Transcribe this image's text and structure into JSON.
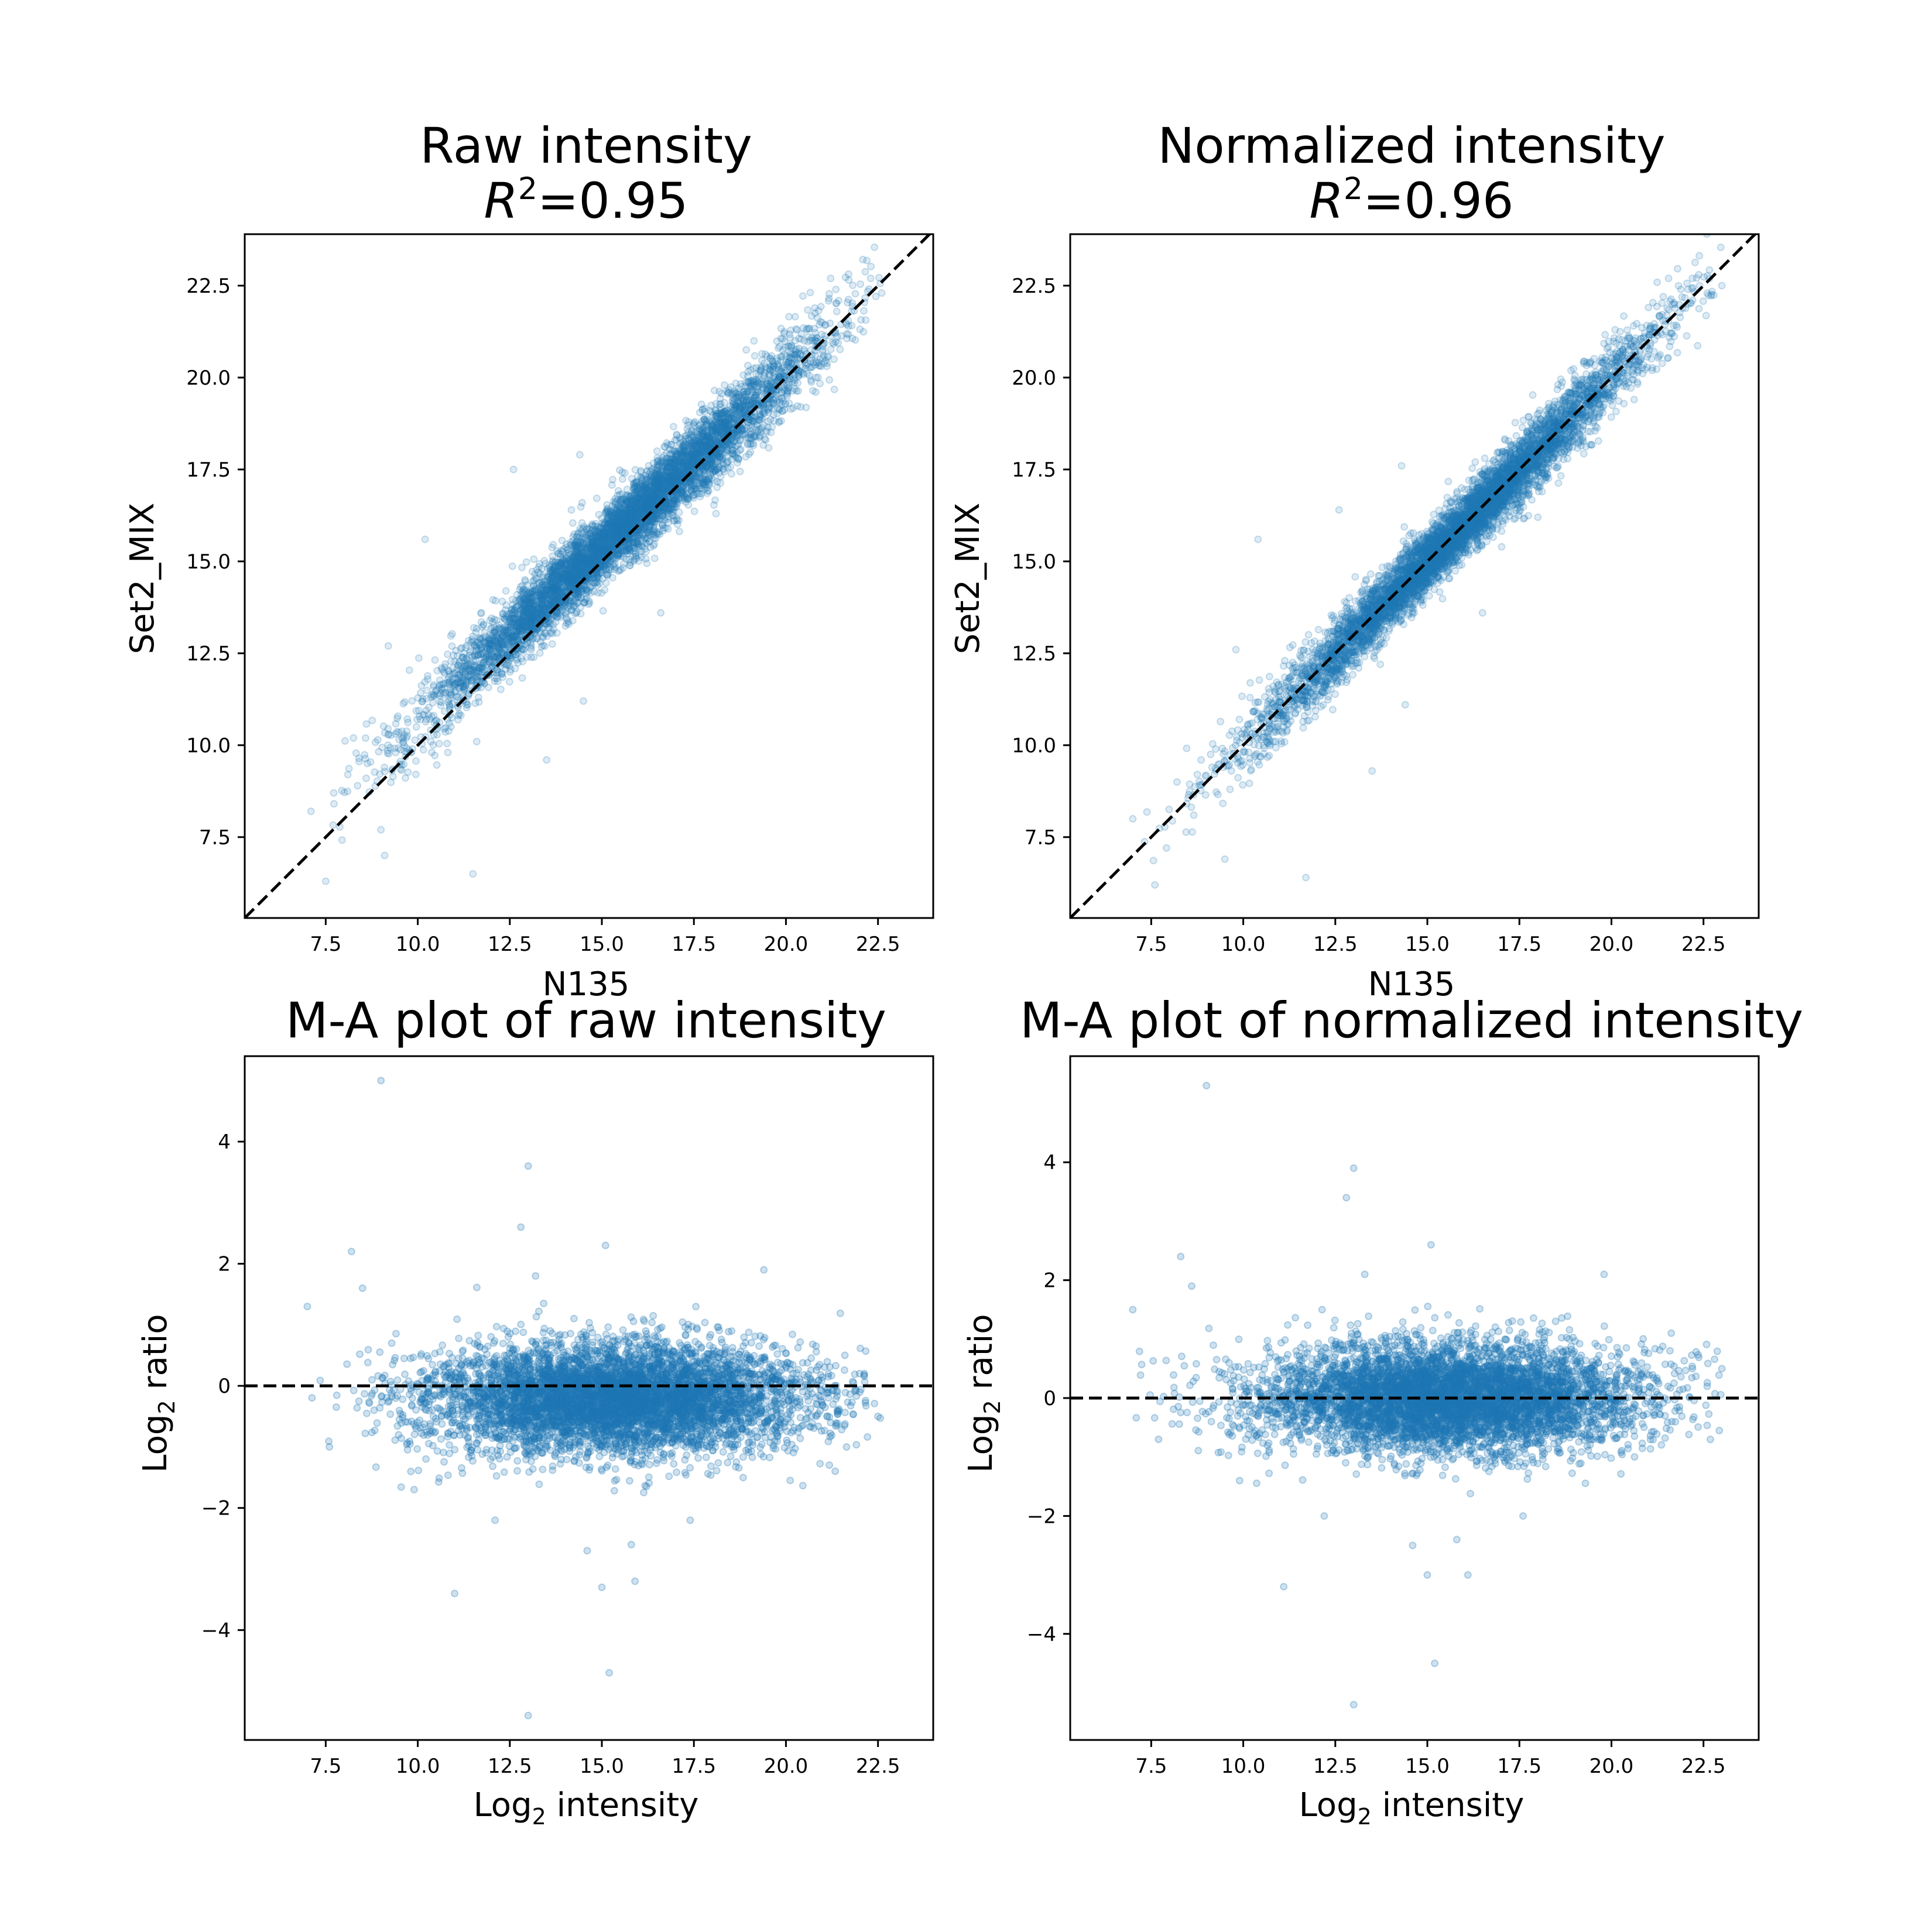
{
  "colors": {
    "points": "#1f77b4",
    "reference_line": "#000000",
    "frame": "#000000",
    "background": "#ffffff"
  },
  "chart_data": [
    {
      "id": "raw",
      "type": "scatter",
      "title": "Raw intensity",
      "subtitle_var": "R",
      "subtitle_sup": "2",
      "subtitle_value": "=0.95",
      "xlabel": "N135",
      "ylabel": "Set2_MIX",
      "xlim": [
        5.3,
        24.0
      ],
      "ylim": [
        5.3,
        23.9
      ],
      "xticks": [
        7.5,
        10.0,
        12.5,
        15.0,
        17.5,
        20.0,
        22.5
      ],
      "yticks": [
        7.5,
        10.0,
        12.5,
        15.0,
        17.5,
        20.0,
        22.5
      ],
      "reference_line": "y = x (dashed)",
      "point_alpha": 0.15,
      "trend": {
        "slope": 0.94,
        "intercept": 1.27,
        "noise_sd": 0.45
      },
      "x_range_of_points": [
        7.5,
        22.6
      ],
      "n_points_approx": 6000,
      "series": [
        {
          "points": [
            [
              7.5,
              6.3
            ],
            [
              7.1,
              8.2
            ],
            [
              8.1,
              9.2
            ],
            [
              8.6,
              9.1
            ],
            [
              9.1,
              7.0
            ],
            [
              9.0,
              7.7
            ],
            [
              9.2,
              12.7
            ],
            [
              9.4,
              9.8
            ],
            [
              10.2,
              15.6
            ],
            [
              11.5,
              6.5
            ],
            [
              11.6,
              10.1
            ],
            [
              12.6,
              17.5
            ],
            [
              13.5,
              9.6
            ],
            [
              14.4,
              17.9
            ],
            [
              14.5,
              11.2
            ],
            [
              16.5,
              18.0
            ],
            [
              16.6,
              13.6
            ],
            [
              18.1,
              16.3
            ],
            [
              20.4,
              19.2
            ],
            [
              20.5,
              21.0
            ],
            [
              22.3,
              22.7
            ],
            [
              22.6,
              22.3
            ],
            [
              21.7,
              21.4
            ],
            [
              19.1,
              19.9
            ],
            [
              17.9,
              18.1
            ],
            [
              16.0,
              16.6
            ],
            [
              13.0,
              13.4
            ],
            [
              11.0,
              11.6
            ]
          ]
        }
      ]
    },
    {
      "id": "normalized",
      "type": "scatter",
      "title": "Normalized intensity",
      "subtitle_var": "R",
      "subtitle_sup": "2",
      "subtitle_value": "=0.96",
      "xlabel": "N135",
      "ylabel": "Set2_MIX",
      "xlim": [
        5.3,
        24.0
      ],
      "ylim": [
        5.3,
        23.9
      ],
      "xticks": [
        7.5,
        10.0,
        12.5,
        15.0,
        17.5,
        20.0,
        22.5
      ],
      "yticks": [
        7.5,
        10.0,
        12.5,
        15.0,
        17.5,
        20.0,
        22.5
      ],
      "reference_line": "y = x (dashed)",
      "point_alpha": 0.15,
      "trend": {
        "slope": 1.0,
        "intercept": 0.0,
        "noise_sd": 0.4
      },
      "x_range_of_points": [
        7.2,
        23.0
      ],
      "n_points_approx": 6000,
      "series": [
        {
          "points": [
            [
              7.6,
              6.2
            ],
            [
              7.0,
              8.0
            ],
            [
              8.2,
              9.0
            ],
            [
              9.5,
              6.9
            ],
            [
              10.4,
              15.6
            ],
            [
              9.8,
              12.6
            ],
            [
              11.7,
              6.4
            ],
            [
              12.6,
              16.4
            ],
            [
              13.5,
              9.3
            ],
            [
              14.3,
              17.6
            ],
            [
              14.4,
              11.1
            ],
            [
              16.3,
              17.7
            ],
            [
              16.5,
              13.6
            ],
            [
              18.0,
              16.2
            ],
            [
              19.9,
              19.6
            ],
            [
              20.1,
              21.3
            ],
            [
              22.2,
              22.7
            ],
            [
              23.0,
              22.5
            ],
            [
              21.5,
              21.7
            ],
            [
              19.0,
              19.1
            ],
            [
              17.2,
              17.4
            ],
            [
              15.5,
              15.4
            ]
          ]
        }
      ]
    },
    {
      "id": "ma_raw",
      "type": "scatter",
      "title": "M-A plot of raw intensity",
      "xlabel_main": "Log",
      "xlabel_sub": "2",
      "xlabel_rest": " intensity",
      "ylabel_main": "Log",
      "ylabel_sub": "2",
      "ylabel_rest": " ratio",
      "xlim": [
        5.3,
        24.0
      ],
      "ylim": [
        -5.8,
        5.4
      ],
      "xticks": [
        7.5,
        10.0,
        12.5,
        15.0,
        17.5,
        20.0,
        22.5
      ],
      "xtick_labels": [
        "7.5",
        "10.0",
        "12.5",
        "15.0",
        "17.5",
        "20.0",
        "22.5"
      ],
      "yticks": [
        -4,
        -2,
        0,
        2,
        4
      ],
      "ytick_labels": [
        "−4",
        "−2",
        "0",
        "2",
        "4"
      ],
      "reference_line": "y = 0 (dashed)",
      "point_alpha": 0.22,
      "trend": {
        "mean_ratio": -0.2,
        "noise_sd": 0.45
      },
      "x_range_of_points": [
        7.0,
        22.6
      ],
      "n_points_approx": 6000,
      "series": [
        {
          "points": [
            [
              9.0,
              5.0
            ],
            [
              13.0,
              3.6
            ],
            [
              12.8,
              2.6
            ],
            [
              8.2,
              2.2
            ],
            [
              15.1,
              2.3
            ],
            [
              13.2,
              1.8
            ],
            [
              19.4,
              1.9
            ],
            [
              7.0,
              1.3
            ],
            [
              8.5,
              1.6
            ],
            [
              7.6,
              -1.0
            ],
            [
              11.0,
              -3.4
            ],
            [
              13.0,
              -5.4
            ],
            [
              15.2,
              -4.7
            ],
            [
              15.0,
              -3.3
            ],
            [
              15.9,
              -3.2
            ],
            [
              14.6,
              -2.7
            ],
            [
              15.8,
              -2.6
            ],
            [
              12.1,
              -2.2
            ],
            [
              17.4,
              -2.2
            ],
            [
              22.5,
              -0.5
            ],
            [
              21.6,
              0.5
            ],
            [
              22.0,
              0.2
            ],
            [
              9.9,
              -1.7
            ]
          ]
        }
      ]
    },
    {
      "id": "ma_normalized",
      "type": "scatter",
      "title": "M-A plot of normalized intensity",
      "xlabel_main": "Log",
      "xlabel_sub": "2",
      "xlabel_rest": " intensity",
      "ylabel_main": "Log",
      "ylabel_sub": "2",
      "ylabel_rest": " ratio",
      "xlim": [
        5.3,
        24.0
      ],
      "ylim": [
        -5.8,
        5.8
      ],
      "xticks": [
        7.5,
        10.0,
        12.5,
        15.0,
        17.5,
        20.0,
        22.5
      ],
      "xtick_labels": [
        "7.5",
        "10.0",
        "12.5",
        "15.0",
        "17.5",
        "20.0",
        "22.5"
      ],
      "yticks": [
        -4,
        -2,
        0,
        2,
        4
      ],
      "ytick_labels": [
        "−4",
        "−2",
        "0",
        "2",
        "4"
      ],
      "reference_line": "y = 0 (dashed)",
      "point_alpha": 0.22,
      "trend": {
        "mean_ratio": 0.0,
        "noise_sd": 0.45
      },
      "x_range_of_points": [
        7.0,
        23.0
      ],
      "n_points_approx": 6000,
      "series": [
        {
          "points": [
            [
              9.0,
              5.3
            ],
            [
              13.0,
              3.9
            ],
            [
              12.8,
              3.4
            ],
            [
              8.3,
              2.4
            ],
            [
              15.1,
              2.6
            ],
            [
              13.3,
              2.1
            ],
            [
              19.8,
              2.1
            ],
            [
              7.0,
              1.5
            ],
            [
              8.6,
              1.9
            ],
            [
              7.7,
              -0.7
            ],
            [
              11.1,
              -3.2
            ],
            [
              13.0,
              -5.2
            ],
            [
              15.2,
              -4.5
            ],
            [
              15.0,
              -3.0
            ],
            [
              16.1,
              -3.0
            ],
            [
              14.6,
              -2.5
            ],
            [
              15.8,
              -2.4
            ],
            [
              12.2,
              -2.0
            ],
            [
              17.6,
              -2.0
            ],
            [
              22.6,
              0.2
            ],
            [
              22.2,
              0.5
            ],
            [
              23.0,
              0.5
            ],
            [
              9.9,
              -1.4
            ]
          ]
        }
      ]
    }
  ]
}
